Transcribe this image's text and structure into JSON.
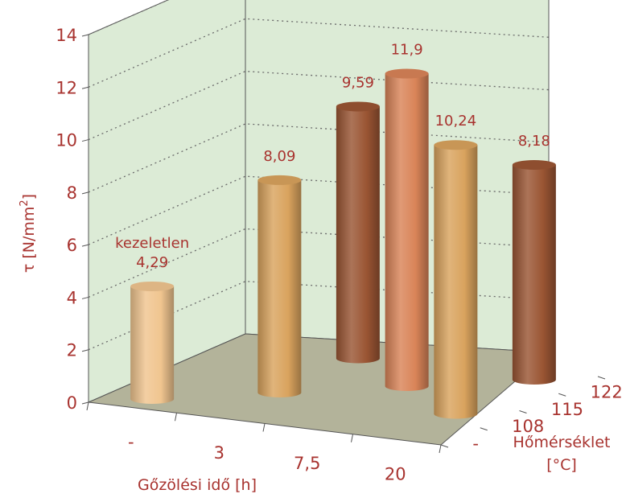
{
  "chart_data": {
    "type": "bar",
    "variant": "3d-cylinder",
    "title": "",
    "xlabel": "Gőzölési idő [h]",
    "ylabel": "τ [N/mm",
    "ylabel_superscript": "2",
    "ylabel_suffix": "]",
    "zlabel_line1": "Hőmérséklet",
    "zlabel_line2": "[°C]",
    "ylim": [
      0,
      14
    ],
    "yticks": [
      "0",
      "2",
      "4",
      "6",
      "8",
      "10",
      "12",
      "14"
    ],
    "x_categories": [
      "-",
      "3",
      "7,5",
      "20"
    ],
    "z_categories": [
      "-",
      "108",
      "115",
      "122"
    ],
    "grid": true,
    "points": [
      {
        "x": "-",
        "z": "-",
        "value": 4.29,
        "label": "4,29",
        "note": "kezeletlen",
        "color": "#f0c58f"
      },
      {
        "x": "3",
        "z": "108",
        "value": 8.09,
        "label": "8,09",
        "color": "#d9a35e"
      },
      {
        "x": "3",
        "z": "122",
        "value": 9.59,
        "label": "9,59",
        "color": "#9a5533"
      },
      {
        "x": "7,5",
        "z": "115",
        "value": 11.9,
        "label": "11,9",
        "color": "#d98458"
      },
      {
        "x": "20",
        "z": "108",
        "value": 10.24,
        "label": "10,24",
        "color": "#d9a35e"
      },
      {
        "x": "20",
        "z": "122",
        "value": 8.18,
        "label": "8,18",
        "color": "#9a5533"
      }
    ]
  },
  "colors": {
    "text": "#a8332f",
    "back_wall": "#dcebd6",
    "floor": "#b3b39a",
    "gridline": "#6b6b6b",
    "axis": "#555555"
  }
}
